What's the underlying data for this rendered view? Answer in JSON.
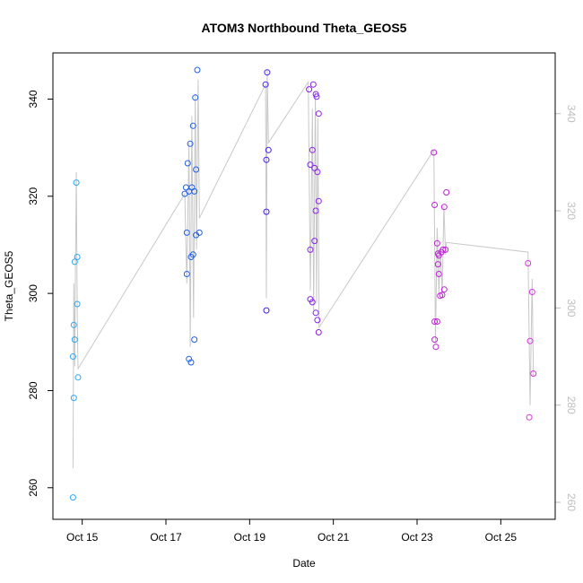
{
  "chart_data": {
    "type": "scatter",
    "title": "ATOM3 Northbound Theta_GEOS5",
    "xlabel": "Date",
    "ylabel": "Theta_GEOS5",
    "x_unit": "days since Oct 15",
    "xlim": [
      -0.7,
      11.3
    ],
    "ylim": [
      253.5,
      349.5
    ],
    "x_ticks": [
      {
        "value": 0,
        "label": "Oct 15"
      },
      {
        "value": 2,
        "label": "Oct 17"
      },
      {
        "value": 4,
        "label": "Oct 19"
      },
      {
        "value": 6,
        "label": "Oct 21"
      },
      {
        "value": 8,
        "label": "Oct 23"
      },
      {
        "value": 10,
        "label": "Oct 25"
      }
    ],
    "y_ticks": [
      260,
      280,
      300,
      320,
      340
    ],
    "right_axis": {
      "ylim": [
        253.5,
        349.5
      ],
      "offset": -3,
      "ticks": [
        260,
        280,
        300,
        320,
        340
      ],
      "color": "#bdbdbd"
    },
    "grid": false,
    "line_color": "#c8c8c8",
    "point_colors": [
      "#2fa8f0",
      "#2060e8",
      "#4020f0",
      "#8a20e8",
      "#c020d8",
      "#d830e0"
    ],
    "points": [
      [
        -0.22,
        258.0
      ],
      [
        -0.2,
        278.5
      ],
      [
        -0.22,
        287.0
      ],
      [
        -0.18,
        290.5
      ],
      [
        -0.2,
        293.5
      ],
      [
        -0.18,
        306.5
      ],
      [
        -0.14,
        322.8
      ],
      [
        -0.12,
        307.5
      ],
      [
        -0.12,
        297.8
      ],
      [
        -0.1,
        282.7
      ],
      [
        2.45,
        320.5
      ],
      [
        2.48,
        321.8
      ],
      [
        2.5,
        312.5
      ],
      [
        2.5,
        304.0
      ],
      [
        2.52,
        326.8
      ],
      [
        2.55,
        321.0
      ],
      [
        2.55,
        286.5
      ],
      [
        2.58,
        330.8
      ],
      [
        2.6,
        285.8
      ],
      [
        2.6,
        307.5
      ],
      [
        2.62,
        321.8
      ],
      [
        2.65,
        334.5
      ],
      [
        2.65,
        308.0
      ],
      [
        2.68,
        290.5
      ],
      [
        2.68,
        321.0
      ],
      [
        2.7,
        340.3
      ],
      [
        2.72,
        325.5
      ],
      [
        2.72,
        312.0
      ],
      [
        2.75,
        346.0
      ],
      [
        2.8,
        312.5
      ],
      [
        4.38,
        343.0
      ],
      [
        4.4,
        327.5
      ],
      [
        4.4,
        316.8
      ],
      [
        4.4,
        296.5
      ],
      [
        4.42,
        345.5
      ],
      [
        4.45,
        329.5
      ],
      [
        5.42,
        342.0
      ],
      [
        5.45,
        326.5
      ],
      [
        5.45,
        309.0
      ],
      [
        5.45,
        298.8
      ],
      [
        5.5,
        329.5
      ],
      [
        5.5,
        298.2
      ],
      [
        5.52,
        343.0
      ],
      [
        5.55,
        325.8
      ],
      [
        5.55,
        310.8
      ],
      [
        5.58,
        341.0
      ],
      [
        5.58,
        317.0
      ],
      [
        5.58,
        296.0
      ],
      [
        5.6,
        340.5
      ],
      [
        5.62,
        325.0
      ],
      [
        5.62,
        294.5
      ],
      [
        5.65,
        337.0
      ],
      [
        5.65,
        319.0
      ],
      [
        5.65,
        292.0
      ],
      [
        8.4,
        329.0
      ],
      [
        8.42,
        318.2
      ],
      [
        8.42,
        294.2
      ],
      [
        8.42,
        290.5
      ],
      [
        8.45,
        289.0
      ],
      [
        8.48,
        310.3
      ],
      [
        8.48,
        294.2
      ],
      [
        8.5,
        308.2
      ],
      [
        8.5,
        306.0
      ],
      [
        8.52,
        307.8
      ],
      [
        8.52,
        304.0
      ],
      [
        8.55,
        299.5
      ],
      [
        8.58,
        308.5
      ],
      [
        8.6,
        299.7
      ],
      [
        8.62,
        309.0
      ],
      [
        8.65,
        317.8
      ],
      [
        8.65,
        300.8
      ],
      [
        8.68,
        309.0
      ],
      [
        8.7,
        320.8
      ],
      [
        10.65,
        306.2
      ],
      [
        10.7,
        290.2
      ],
      [
        10.68,
        274.5
      ],
      [
        10.75,
        300.3
      ],
      [
        10.78,
        283.5
      ]
    ],
    "line_path": [
      [
        -0.22,
        264.0
      ],
      [
        -0.2,
        302.0
      ],
      [
        -0.18,
        285.0
      ],
      [
        -0.16,
        307.5
      ],
      [
        -0.14,
        325.0
      ],
      [
        -0.12,
        296.0
      ],
      [
        -0.1,
        284.5
      ],
      [
        2.45,
        320.5
      ],
      [
        2.5,
        302.0
      ],
      [
        2.55,
        331.0
      ],
      [
        2.58,
        289.0
      ],
      [
        2.62,
        336.5
      ],
      [
        2.66,
        295.0
      ],
      [
        2.7,
        341.0
      ],
      [
        2.73,
        309.0
      ],
      [
        2.77,
        344.0
      ],
      [
        2.8,
        315.5
      ],
      [
        4.38,
        343.0
      ],
      [
        4.4,
        299.0
      ],
      [
        4.42,
        346.0
      ],
      [
        4.45,
        331.0
      ],
      [
        5.4,
        343.5
      ],
      [
        5.45,
        300.5
      ],
      [
        5.5,
        338.0
      ],
      [
        5.53,
        296.5
      ],
      [
        5.57,
        341.5
      ],
      [
        5.6,
        298.0
      ],
      [
        5.63,
        336.0
      ],
      [
        5.66,
        293.0
      ],
      [
        8.4,
        329.5
      ],
      [
        8.44,
        290.0
      ],
      [
        8.48,
        313.5
      ],
      [
        8.52,
        300.0
      ],
      [
        8.56,
        309.5
      ],
      [
        8.6,
        299.5
      ],
      [
        8.64,
        318.0
      ],
      [
        8.68,
        308.0
      ],
      [
        8.7,
        310.5
      ],
      [
        10.65,
        308.5
      ],
      [
        10.7,
        277.0
      ],
      [
        10.75,
        303.0
      ],
      [
        10.78,
        283.0
      ]
    ]
  }
}
